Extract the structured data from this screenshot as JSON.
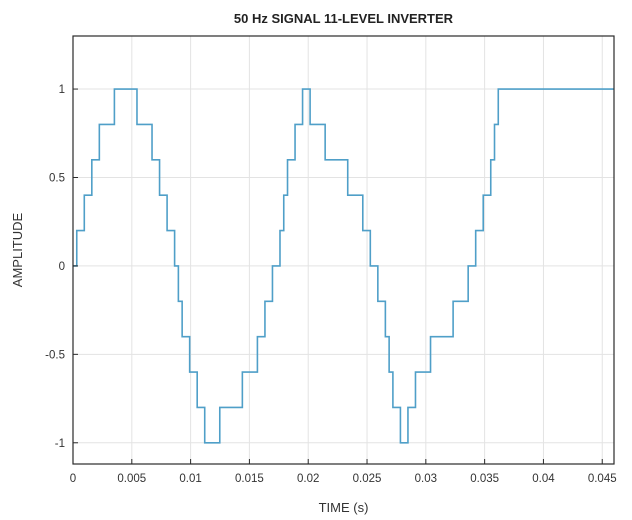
{
  "chart_data": {
    "type": "line",
    "title": "50 Hz SIGNAL 11-LEVEL INVERTER",
    "xlabel": "TIME (s)",
    "ylabel": "AMPLITUDE",
    "xlim": [
      0,
      0.046
    ],
    "ylim": [
      -1.12,
      1.3
    ],
    "xticks": [
      0,
      0.005,
      0.01,
      0.015,
      0.02,
      0.025,
      0.03,
      0.035,
      0.04,
      0.045
    ],
    "xtick_labels": [
      "0",
      "0.005",
      "0.01",
      "0.015",
      "0.02",
      "0.025",
      "0.03",
      "0.035",
      "0.04",
      "0.045"
    ],
    "yticks": [
      -1,
      -0.5,
      0,
      0.5,
      1
    ],
    "ytick_labels": [
      "-1",
      "-0.5",
      "0",
      "0.5",
      "1"
    ],
    "grid": true,
    "series": [
      {
        "color": "#4f9fc8",
        "step": "post",
        "x": [
          0,
          0.00032,
          0.00096,
          0.0016,
          0.00224,
          0.00352,
          0.00544,
          0.00672,
          0.00736,
          0.008,
          0.00864,
          0.00896,
          0.00928,
          0.00992,
          0.01056,
          0.0112,
          0.01248,
          0.0144,
          0.01568,
          0.01632,
          0.01696,
          0.0176,
          0.01792,
          0.01824,
          0.01888,
          0.01952,
          0.02016,
          0.02144,
          0.02336,
          0.02464,
          0.02528,
          0.02592,
          0.02656,
          0.02688,
          0.0272,
          0.02784,
          0.02848,
          0.02912,
          0.0304,
          0.03232,
          0.0336,
          0.03424,
          0.03488,
          0.03552,
          0.03584,
          0.03616,
          0.0368,
          0.03744,
          0.03808,
          0.03936,
          0.046
        ],
        "y": [
          0,
          0.2,
          0.4,
          0.6,
          0.8,
          1.0,
          0.8,
          0.6,
          0.4,
          0.2,
          0,
          -0.2,
          -0.4,
          -0.6,
          -0.8,
          -1.0,
          -0.8,
          -0.6,
          -0.4,
          -0.2,
          0,
          0.2,
          0.4,
          0.6,
          0.8,
          1.0,
          0.8,
          0.6,
          0.4,
          0.2,
          0,
          -0.2,
          -0.4,
          -0.6,
          -0.8,
          -1.0,
          -0.8,
          -0.6,
          -0.4,
          -0.2,
          0,
          0.2,
          0.4,
          0.6,
          0.8,
          1.0,
          1.0,
          1.0,
          1.0,
          1.0,
          1.0
        ]
      }
    ]
  }
}
